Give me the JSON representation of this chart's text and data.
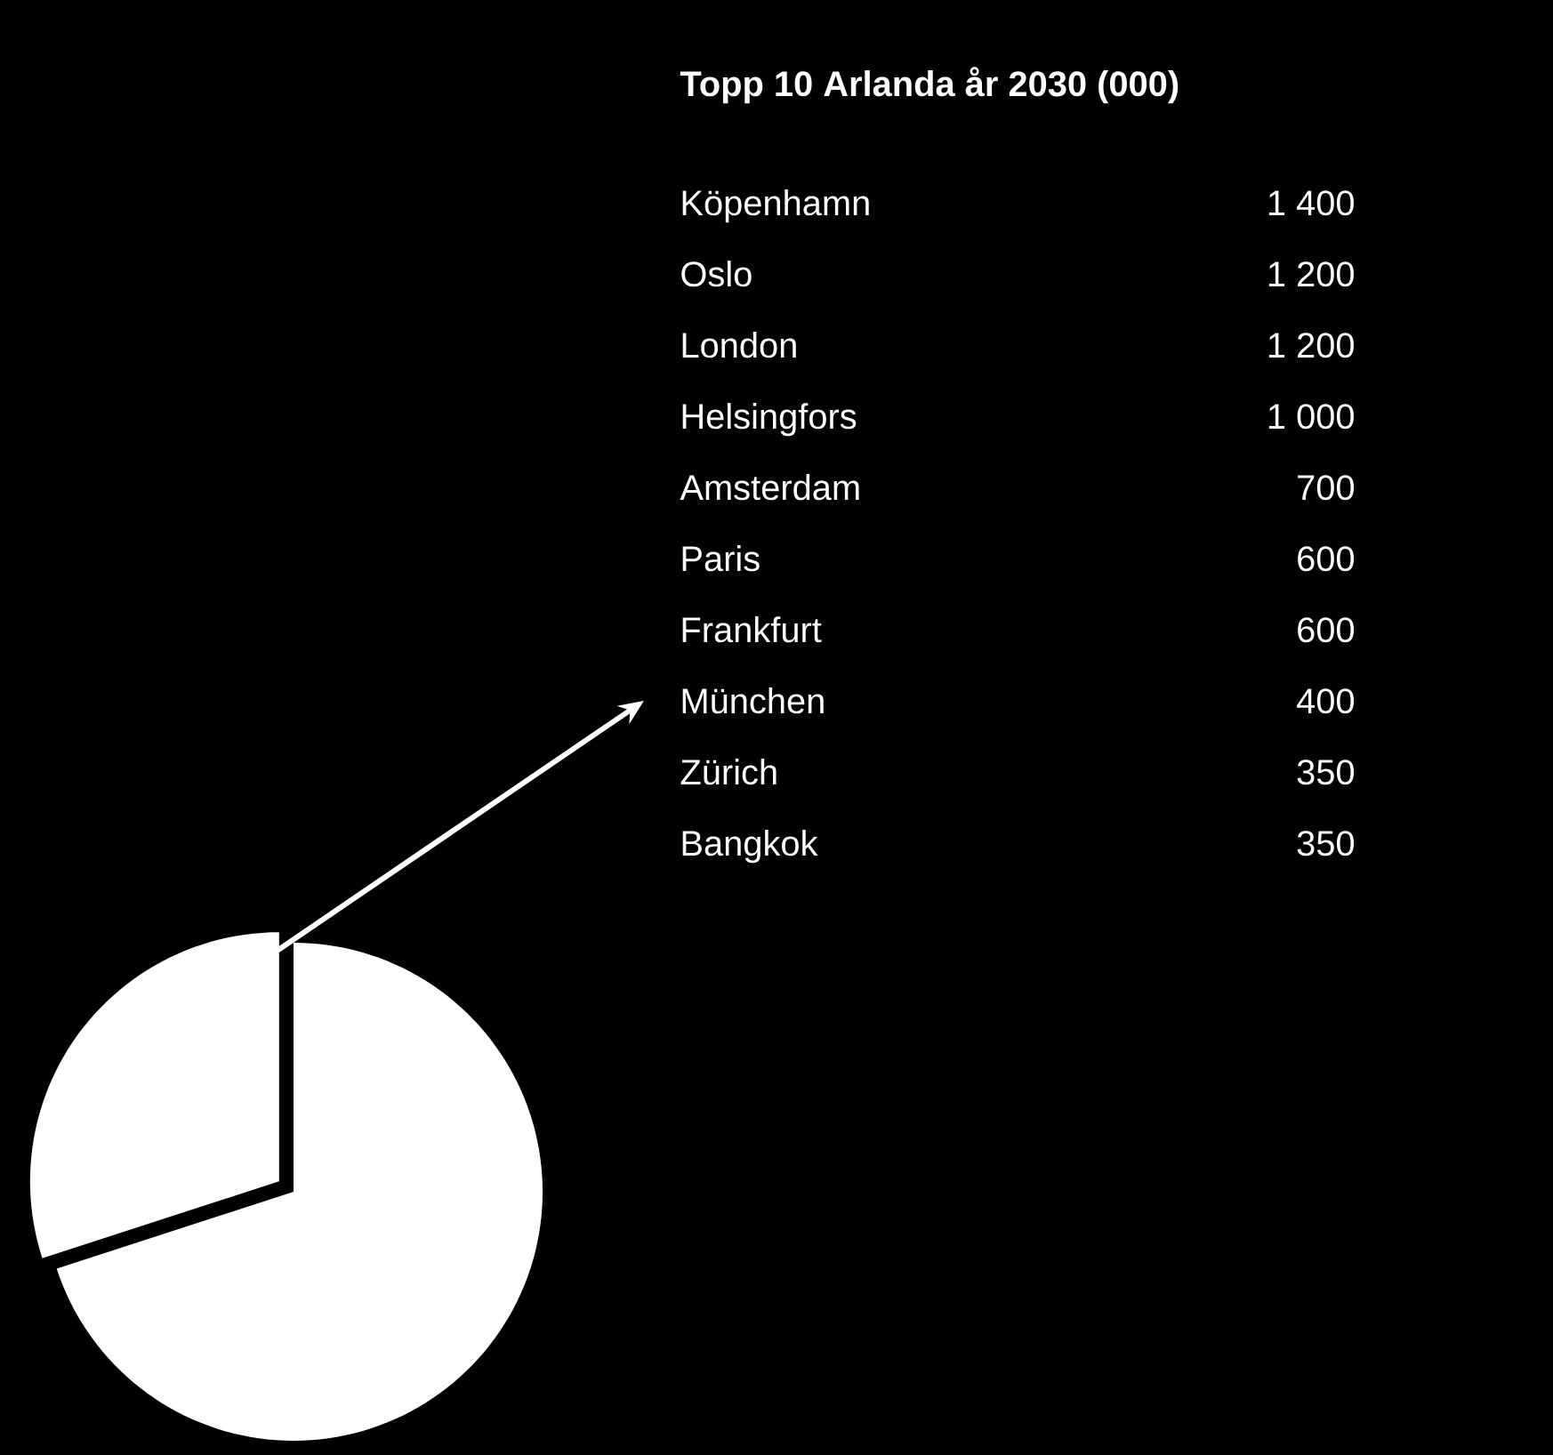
{
  "chart_data": [
    {
      "type": "pie",
      "categories": [
        null,
        null
      ],
      "values": [
        30,
        70
      ],
      "colors": [
        "#ffffff",
        "#ffffff"
      ]
    },
    {
      "type": "other",
      "title": "Topp 10 Arlanda år 2030 (000)",
      "categories": [
        "Köpenhamn",
        "Oslo",
        "London",
        "Helsingfors",
        "Amsterdam",
        "Paris",
        "Frankfurt",
        "München",
        "Zürich",
        "Bangkok"
      ],
      "value_labels": [
        "1 400",
        "1 200",
        "1 200",
        "1 000",
        "700",
        "600",
        "600",
        "400",
        "350",
        "350"
      ]
    }
  ]
}
